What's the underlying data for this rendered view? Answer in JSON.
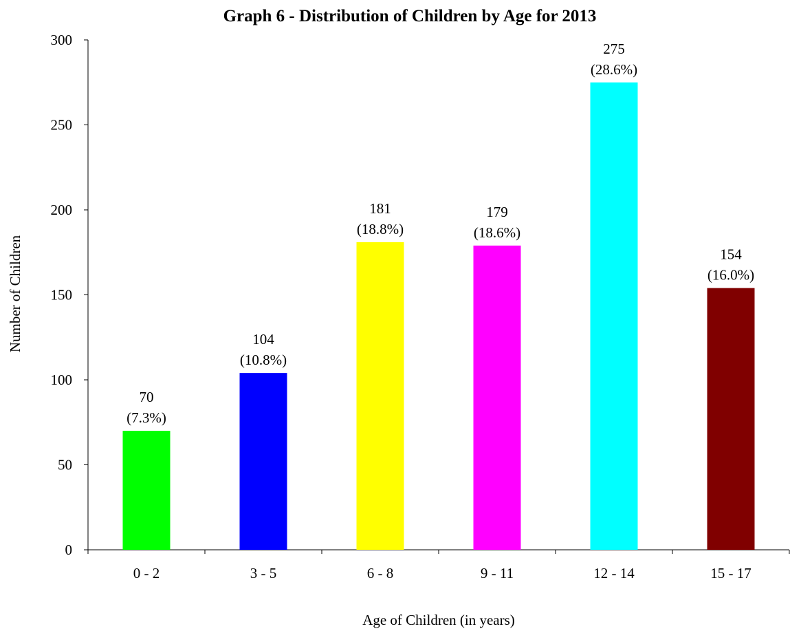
{
  "chart_data": {
    "type": "bar",
    "title": "Graph 6 - Distribution of Children by Age for 2013",
    "xlabel": "Age of Children (in years)",
    "ylabel": "Number of Children",
    "categories": [
      "0 - 2",
      "3 - 5",
      "6 - 8",
      "9 - 11",
      "12 - 14",
      "15 - 17"
    ],
    "values": [
      70,
      104,
      181,
      179,
      275,
      154
    ],
    "percent_labels": [
      "(7.3%)",
      "(10.8%)",
      "(18.8%)",
      "(18.6%)",
      "(28.6%)",
      "(16.0%)"
    ],
    "bar_colors": [
      "#00ff00",
      "#0000ff",
      "#ffff00",
      "#ff00ff",
      "#00ffff",
      "#800000"
    ],
    "ylim": [
      0,
      300
    ],
    "yticks": [
      0,
      50,
      100,
      150,
      200,
      250,
      300
    ],
    "grid": false,
    "legend": "none"
  }
}
